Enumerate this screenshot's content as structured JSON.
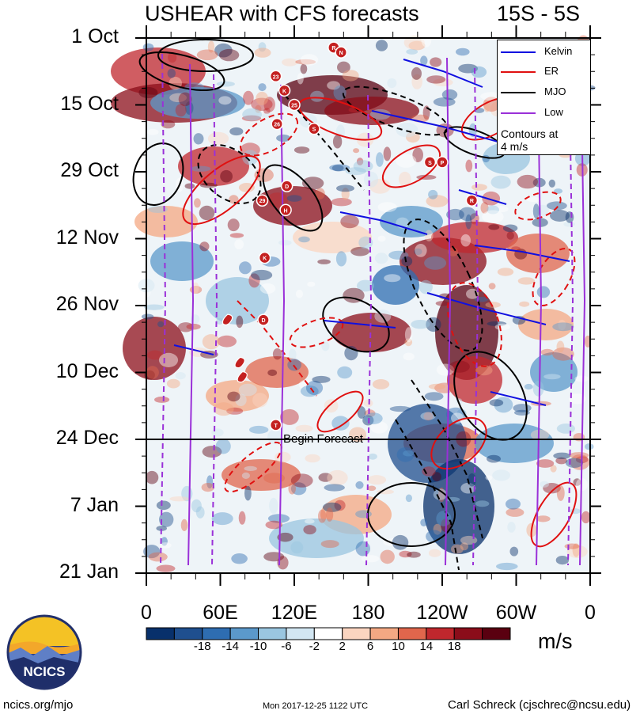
{
  "title": "USHEAR with CFS forecasts",
  "latitude_band": "15S - 5S",
  "units": "m/s",
  "forecast_label": "Begin Forecast",
  "legend": {
    "items": [
      {
        "label": "Kelvin",
        "color": "#1010e0"
      },
      {
        "label": "ER",
        "color": "#e01010"
      },
      {
        "label": "MJO",
        "color": "#000000"
      },
      {
        "label": "Low",
        "color": "#9a30d8"
      }
    ],
    "note_line1": "Contours at",
    "note_line2": "4 m/s"
  },
  "footer": {
    "left": "ncics.org/mjo",
    "center": "Mon 2017-12-25 1122 UTC",
    "right": "Carl Schreck (cjschrec@ncsu.edu)"
  },
  "logo_text": "NCICS",
  "colors": {
    "kelvin": "#1010e0",
    "er": "#e01010",
    "mjo": "#000000",
    "low": "#9a30d8",
    "forecast_line": "#000000"
  },
  "chart_data": {
    "type": "heatmap",
    "title": "USHEAR with CFS forecasts",
    "subtitle": "15S - 5S",
    "xlabel": "",
    "ylabel": "",
    "x_ticks": [
      "0",
      "60E",
      "120E",
      "180",
      "120W",
      "60W",
      "0"
    ],
    "x_tick_values": [
      0,
      60,
      120,
      180,
      240,
      300,
      360
    ],
    "xlim": [
      0,
      360
    ],
    "y_ticks": [
      "1 Oct",
      "15 Oct",
      "29 Oct",
      "12 Nov",
      "26 Nov",
      "10 Dec",
      "24 Dec",
      "7 Jan",
      "21 Jan"
    ],
    "y_tick_values": [
      "2017-10-01",
      "2017-10-15",
      "2017-10-29",
      "2017-11-12",
      "2017-11-26",
      "2017-12-10",
      "2017-12-24",
      "2018-01-07",
      "2018-01-21"
    ],
    "ylim": [
      "2017-10-01",
      "2018-01-21"
    ],
    "forecast_start": "2017-12-24",
    "colorbar": {
      "labels": [
        "-18",
        "-14",
        "-10",
        "-6",
        "-2",
        "2",
        "6",
        "10",
        "14",
        "18"
      ],
      "colors": [
        "#08306b",
        "#1f4f8f",
        "#2e6db1",
        "#5b99cb",
        "#9ac6e0",
        "#d2e6f2",
        "#ffffff",
        "#fbd5c0",
        "#f4a883",
        "#e0664c",
        "#c0272d",
        "#8b0d1a",
        "#5a0010"
      ]
    },
    "legend": [
      "Kelvin",
      "ER",
      "MJO",
      "Low"
    ],
    "contour_interval": "4 m/s",
    "storm_markers": [
      {
        "label": "R",
        "lon": 152,
        "date": "2017-10-03"
      },
      {
        "label": "N",
        "lon": 158,
        "date": "2017-10-04"
      },
      {
        "label": "23",
        "lon": 105,
        "date": "2017-10-09"
      },
      {
        "label": "K",
        "lon": 112,
        "date": "2017-10-12"
      },
      {
        "label": "25",
        "lon": 120,
        "date": "2017-10-15"
      },
      {
        "label": "26",
        "lon": 106,
        "date": "2017-10-19"
      },
      {
        "label": "S",
        "lon": 136,
        "date": "2017-10-20"
      },
      {
        "label": "S",
        "lon": 230,
        "date": "2017-10-27"
      },
      {
        "label": "P",
        "lon": 240,
        "date": "2017-10-27"
      },
      {
        "label": "D",
        "lon": 114,
        "date": "2017-11-01"
      },
      {
        "label": "29",
        "lon": 94,
        "date": "2017-11-04"
      },
      {
        "label": "R",
        "lon": 264,
        "date": "2017-11-04"
      },
      {
        "label": "H",
        "lon": 113,
        "date": "2017-11-06"
      },
      {
        "label": "K",
        "lon": 96,
        "date": "2017-11-16"
      },
      {
        "label": "D",
        "lon": 95,
        "date": "2017-11-29"
      },
      {
        "label": "T",
        "lon": 105,
        "date": "2017-12-21"
      }
    ],
    "cyclone_markers": [
      {
        "lon": 66,
        "date": "2017-11-29"
      },
      {
        "lon": 76,
        "date": "2017-12-08"
      },
      {
        "lon": 78,
        "date": "2017-12-11"
      }
    ]
  }
}
